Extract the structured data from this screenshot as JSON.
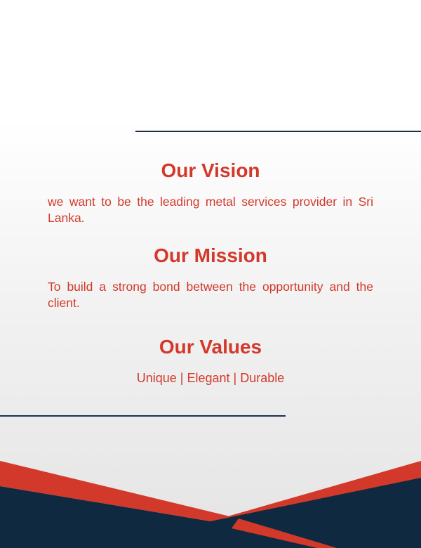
{
  "vision": {
    "title": "Our Vision",
    "text": "we want to be the leading metal services provider in Sri Lanka."
  },
  "mission": {
    "title": "Our Mission",
    "text": "To build a strong bond between the opportunity and the client."
  },
  "values": {
    "title": "Our Values",
    "text": "Unique | Elegant | Durable"
  },
  "colors": {
    "accent": "#d3392b",
    "navy": "#0f2a40",
    "rule": "#1e3045"
  }
}
